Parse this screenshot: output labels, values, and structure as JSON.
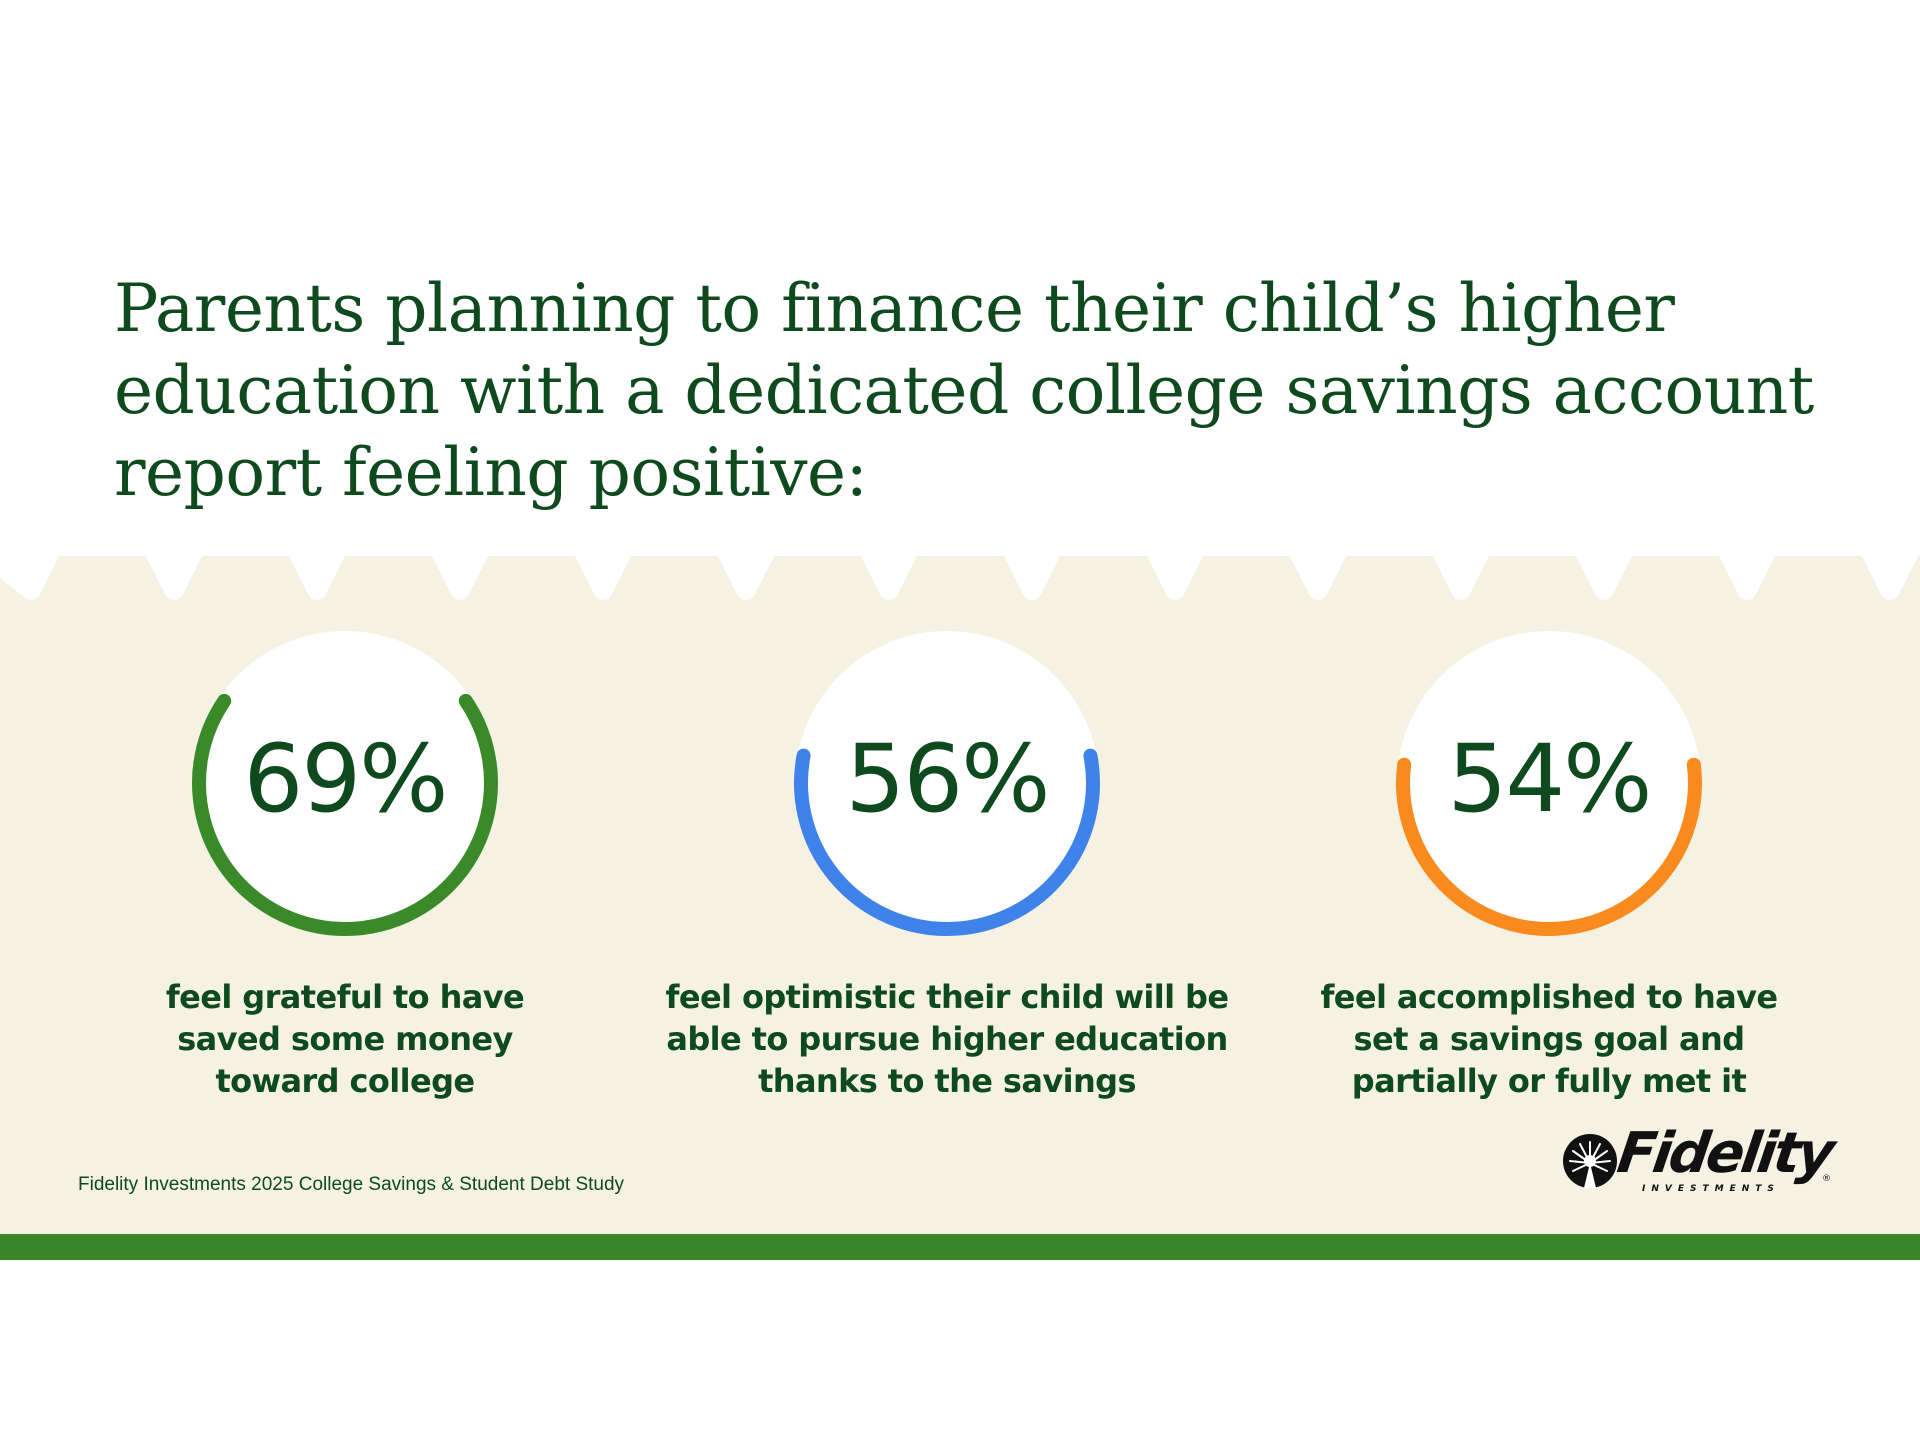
{
  "title": {
    "lines": [
      "Parents planning to finance their child’s higher",
      "education with a dedicated college savings account",
      "report feeling positive:"
    ]
  },
  "colors": {
    "text": "#0E4A1E",
    "cream_background": "#F5F2E4",
    "bottom_bar": "#3A8729"
  },
  "stats": [
    {
      "value": "69%",
      "color": "#3A8A2A",
      "caption_lines": [
        "feel grateful to have",
        "saved some money",
        "toward college"
      ]
    },
    {
      "value": "56%",
      "color": "#3E82EA",
      "caption_lines": [
        "feel optimistic their child will be",
        "able to pursue higher education",
        "thanks to the savings"
      ]
    },
    {
      "value": "54%",
      "color": "#F88A1E",
      "caption_lines": [
        "feel accomplished to have",
        "set a savings goal and",
        "partially or fully met it"
      ]
    }
  ],
  "footer": {
    "source": "Fidelity Investments 2025 College Savings & Student Debt Study",
    "logo": {
      "icon": "fidelity-emblem-icon",
      "wordmark": "Fidelity",
      "subtitle": "INVESTMENTS",
      "registered": "®"
    }
  },
  "chart_data": {
    "type": "gauge",
    "title": "Parents planning to finance their child’s higher education with a dedicated college savings account report feeling positive:",
    "categories": [
      "feel grateful to have saved some money toward college",
      "feel optimistic their child will be able to pursue higher education thanks to the savings",
      "feel accomplished to have set a savings goal and partially or fully met it"
    ],
    "values": [
      69,
      56,
      54
    ],
    "unit": "%",
    "colors": [
      "#3A8A2A",
      "#3E82EA",
      "#F88A1E"
    ],
    "source": "Fidelity Investments 2025 College Savings & Student Debt Study"
  }
}
